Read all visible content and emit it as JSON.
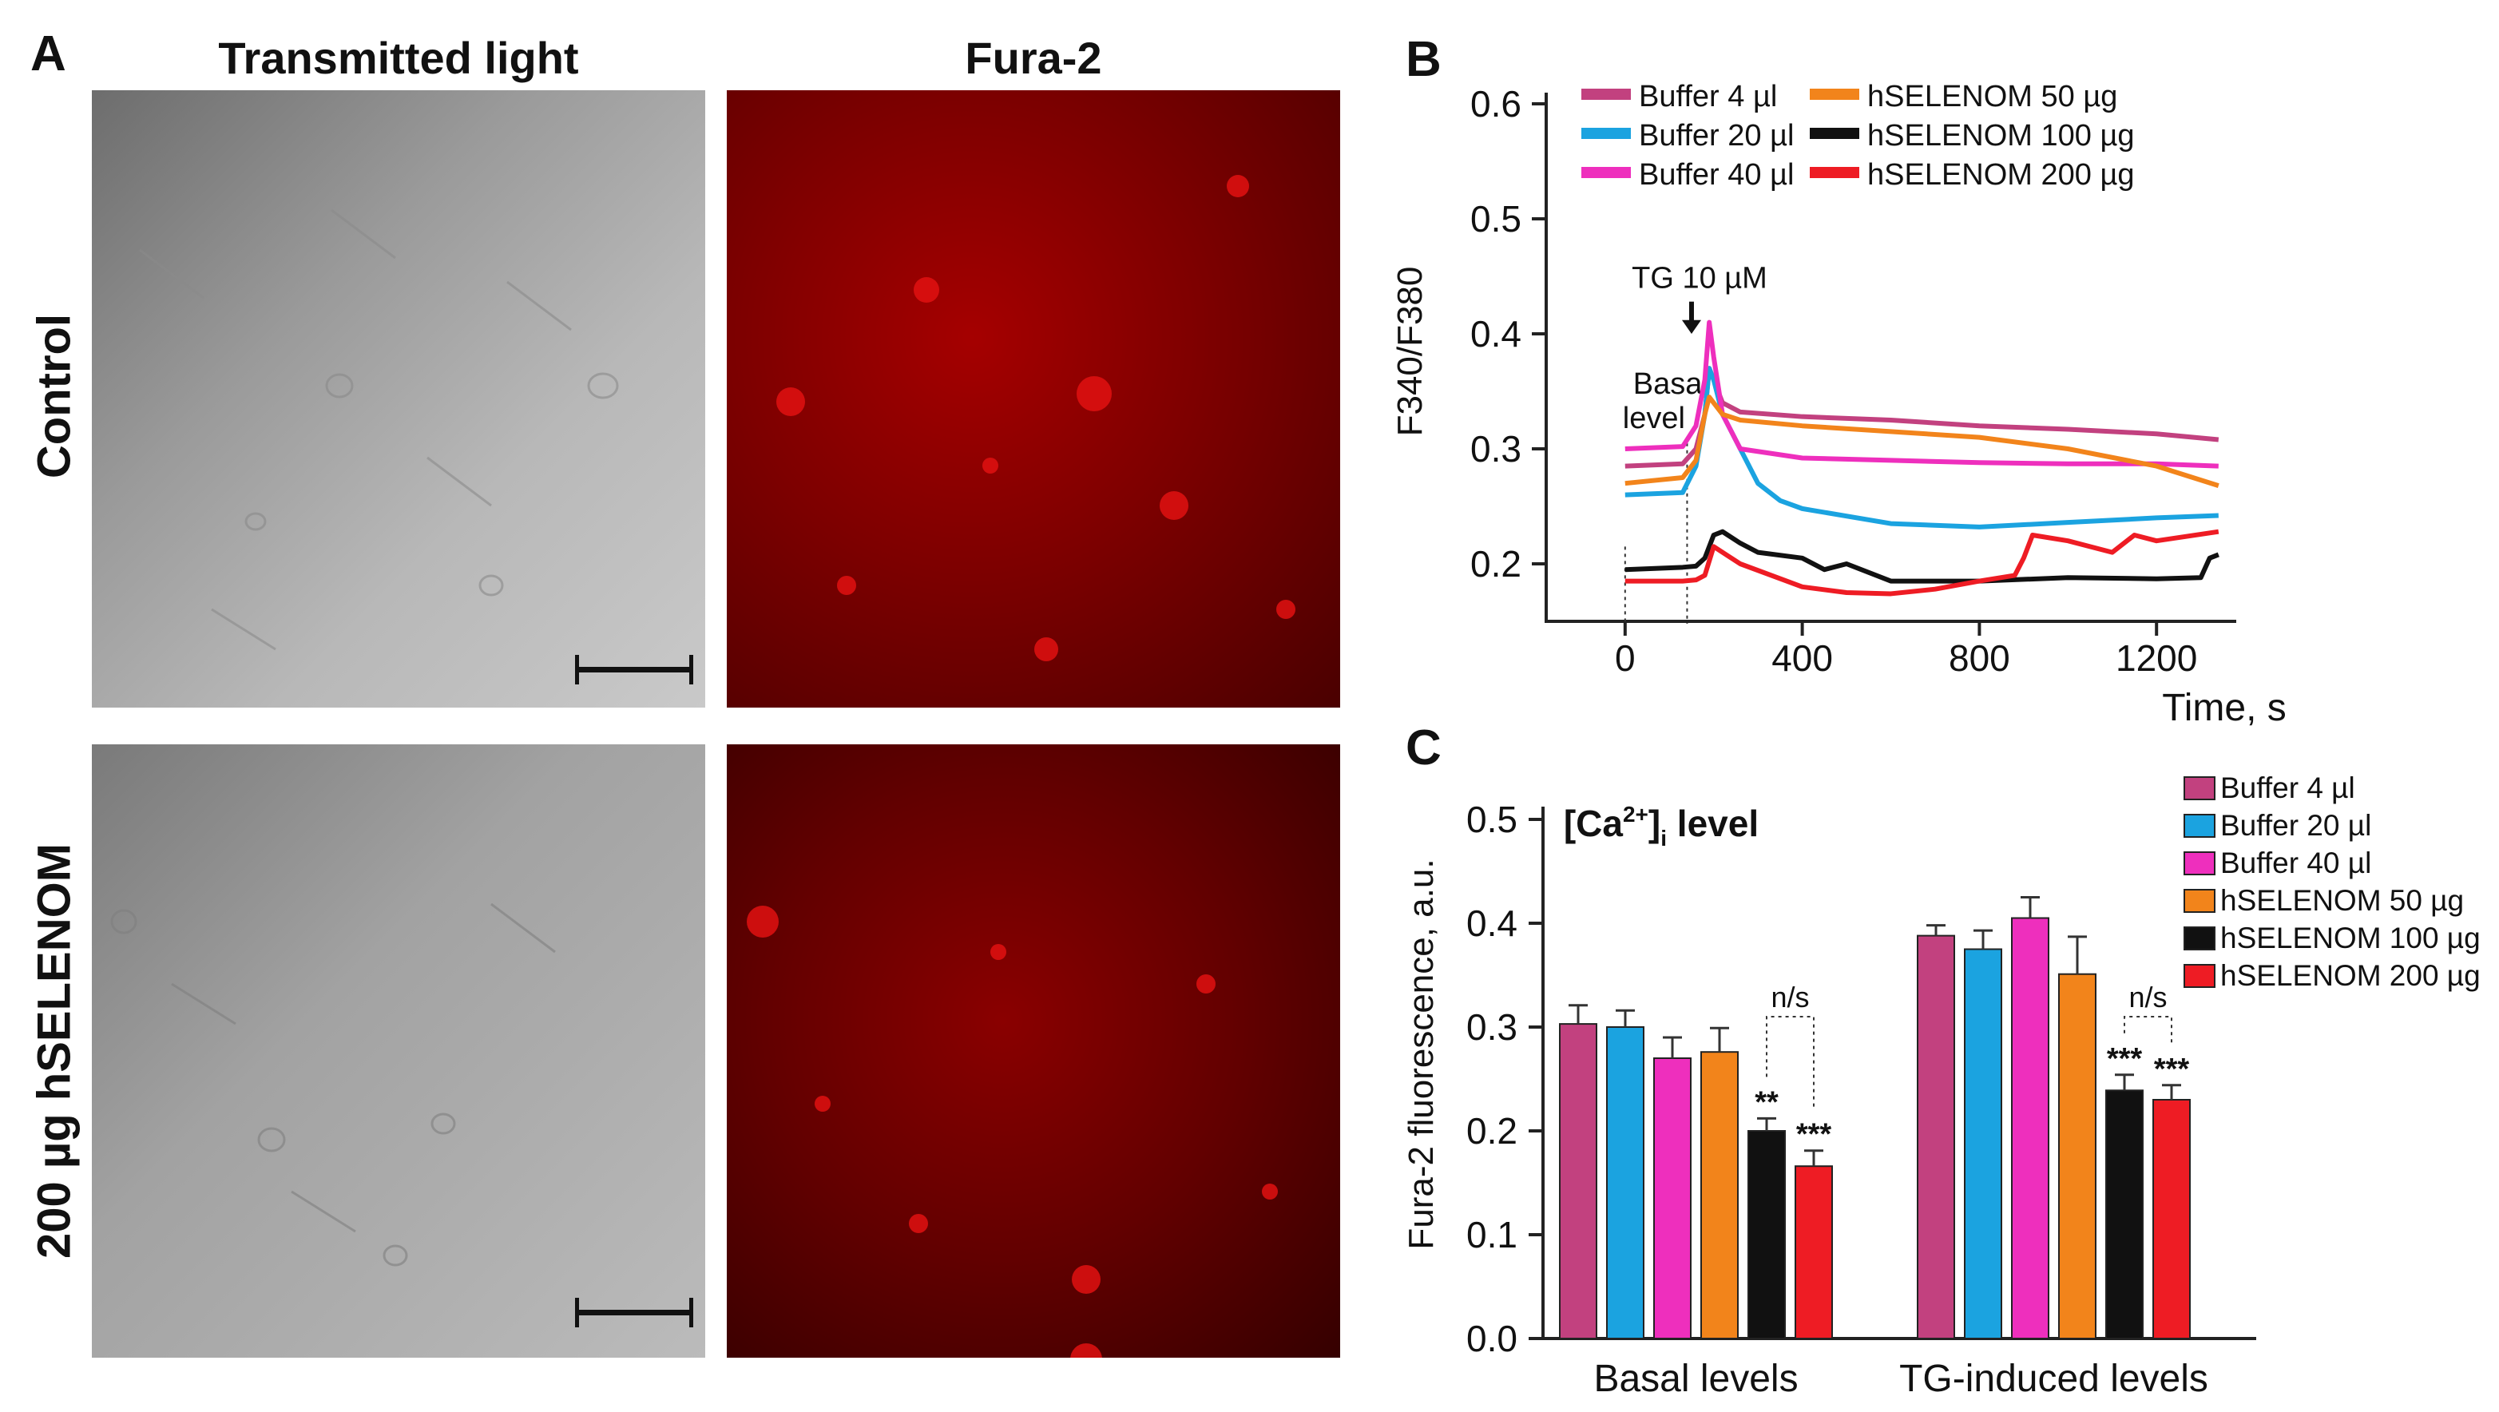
{
  "panel_a": {
    "label": "A",
    "col_titles": [
      "Transmitted light",
      "Fura-2"
    ],
    "row_labels": [
      "Control",
      "200 µg hSELENOM"
    ]
  },
  "colors": {
    "buffer4": "#c2417f",
    "buffer20": "#1ba3e0",
    "buffer40": "#ee2fbd",
    "selenom50": "#f2841b",
    "selenom100": "#111111",
    "selenom200": "#ee1c24"
  },
  "chart_data": [
    {
      "id": "B",
      "panel_label": "B",
      "type": "line",
      "xlabel": "Time, s",
      "ylabel": "F340/F380",
      "xlim": [
        -180,
        1380
      ],
      "ylim": [
        0.15,
        0.6
      ],
      "xticks": [
        0,
        400,
        800,
        1200
      ],
      "yticks": [
        0.2,
        0.3,
        0.4,
        0.5,
        0.6
      ],
      "ytick_labels": [
        "0.2",
        "0.3",
        "0.4",
        "0.5",
        "0.6"
      ],
      "annotations": {
        "tg": "TG 10 µM",
        "tg_time": 150,
        "basal_line1": "Basal",
        "basal_line2": "level",
        "basal_window": [
          0,
          140
        ]
      },
      "series": [
        {
          "name": "Buffer 4 µl",
          "color_key": "buffer4",
          "x": [
            0,
            130,
            160,
            180,
            190,
            200,
            220,
            260,
            400,
            600,
            800,
            1000,
            1200,
            1340
          ],
          "y": [
            0.285,
            0.287,
            0.3,
            0.33,
            0.37,
            0.36,
            0.34,
            0.332,
            0.328,
            0.325,
            0.32,
            0.317,
            0.313,
            0.308
          ]
        },
        {
          "name": "Buffer 20 µl",
          "color_key": "buffer20",
          "x": [
            0,
            130,
            160,
            180,
            190,
            200,
            220,
            260,
            300,
            350,
            400,
            600,
            800,
            1000,
            1200,
            1340
          ],
          "y": [
            0.26,
            0.262,
            0.285,
            0.33,
            0.37,
            0.36,
            0.33,
            0.3,
            0.27,
            0.255,
            0.248,
            0.235,
            0.232,
            0.236,
            0.24,
            0.242
          ]
        },
        {
          "name": "Buffer 40 µl",
          "color_key": "buffer40",
          "x": [
            0,
            130,
            160,
            180,
            190,
            200,
            220,
            260,
            400,
            600,
            800,
            1000,
            1200,
            1340
          ],
          "y": [
            0.3,
            0.302,
            0.32,
            0.36,
            0.41,
            0.38,
            0.33,
            0.3,
            0.292,
            0.29,
            0.288,
            0.287,
            0.287,
            0.285
          ]
        },
        {
          "name": "hSELENOM 50 µg",
          "color_key": "selenom50",
          "x": [
            0,
            130,
            160,
            180,
            190,
            200,
            220,
            260,
            400,
            600,
            800,
            1000,
            1200,
            1340
          ],
          "y": [
            0.27,
            0.275,
            0.29,
            0.33,
            0.345,
            0.34,
            0.33,
            0.325,
            0.32,
            0.315,
            0.31,
            0.3,
            0.285,
            0.268
          ]
        },
        {
          "name": "hSELENOM 100 µg",
          "color_key": "selenom100",
          "x": [
            0,
            130,
            160,
            180,
            200,
            220,
            260,
            300,
            400,
            450,
            500,
            600,
            800,
            1000,
            1200,
            1300,
            1320,
            1340
          ],
          "y": [
            0.195,
            0.197,
            0.198,
            0.205,
            0.225,
            0.228,
            0.218,
            0.21,
            0.205,
            0.195,
            0.2,
            0.185,
            0.185,
            0.188,
            0.187,
            0.188,
            0.205,
            0.208
          ]
        },
        {
          "name": "hSELENOM 200 µg",
          "color_key": "selenom200",
          "x": [
            0,
            130,
            160,
            180,
            200,
            260,
            400,
            500,
            600,
            700,
            800,
            880,
            900,
            920,
            1000,
            1100,
            1150,
            1200,
            1340
          ],
          "y": [
            0.185,
            0.185,
            0.186,
            0.19,
            0.215,
            0.2,
            0.18,
            0.175,
            0.174,
            0.178,
            0.185,
            0.19,
            0.205,
            0.225,
            0.22,
            0.21,
            0.225,
            0.22,
            0.228
          ]
        }
      ]
    },
    {
      "id": "C",
      "panel_label": "C",
      "type": "bar",
      "title_main": "[Ca",
      "title_sup": "2+",
      "title_end": "]",
      "title_sub": "i",
      "title_tail": " level",
      "ylabel": "Fura-2 fluorescence, a.u.",
      "ylim": [
        0,
        0.5
      ],
      "yticks": [
        0.0,
        0.1,
        0.2,
        0.3,
        0.4,
        0.5
      ],
      "ytick_labels": [
        "0.0",
        "0.1",
        "0.2",
        "0.3",
        "0.4",
        "0.5"
      ],
      "categories": [
        "Basal levels",
        "TG-induced levels"
      ],
      "series": [
        {
          "name": "Buffer 4 µl",
          "color_key": "buffer4",
          "values": [
            0.303,
            0.388
          ],
          "errors": [
            0.018,
            0.01
          ],
          "stars": [
            "",
            ""
          ]
        },
        {
          "name": "Buffer 20 µl",
          "color_key": "buffer20",
          "values": [
            0.3,
            0.375
          ],
          "errors": [
            0.016,
            0.018
          ],
          "stars": [
            "",
            ""
          ]
        },
        {
          "name": "Buffer 40 µl",
          "color_key": "buffer40",
          "values": [
            0.27,
            0.405
          ],
          "errors": [
            0.02,
            0.02
          ],
          "stars": [
            "",
            ""
          ]
        },
        {
          "name": "hSELENOM 50 µg",
          "color_key": "selenom50",
          "values": [
            0.276,
            0.351
          ],
          "errors": [
            0.023,
            0.036
          ],
          "stars": [
            "",
            ""
          ]
        },
        {
          "name": "hSELENOM 100 µg",
          "color_key": "selenom100",
          "values": [
            0.2,
            0.239
          ],
          "errors": [
            0.012,
            0.015
          ],
          "stars": [
            "**",
            "***"
          ]
        },
        {
          "name": "hSELENOM 200 µg",
          "color_key": "selenom200",
          "values": [
            0.166,
            0.23
          ],
          "errors": [
            0.015,
            0.014
          ],
          "stars": [
            "***",
            "***"
          ]
        }
      ],
      "ns_label": "n/s"
    }
  ]
}
